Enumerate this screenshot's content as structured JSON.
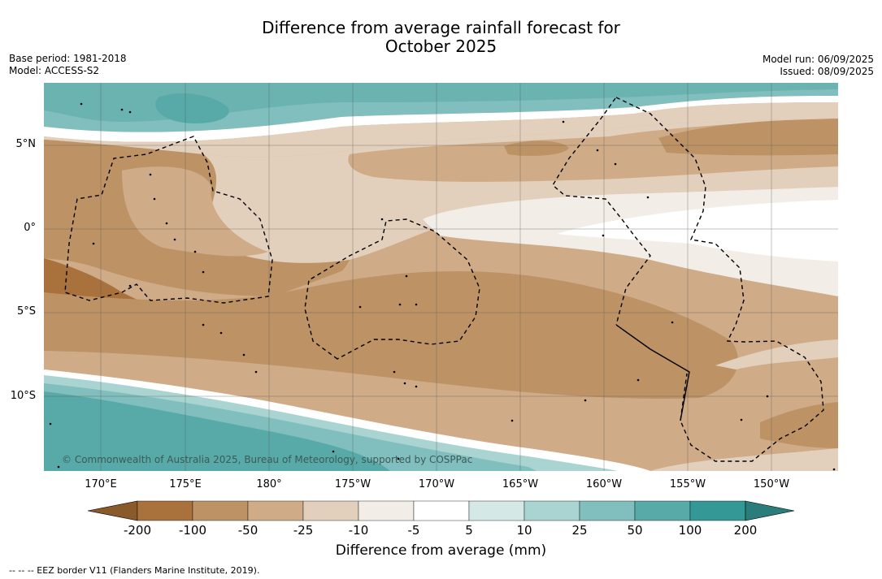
{
  "title_line1": "Difference from average rainfall forecast for",
  "title_line2": "October 2025",
  "base_period": "Base period: 1981-2018",
  "model": "Model: ACCESS-S2",
  "model_run": "Model run: 06/09/2025",
  "issued": "Issued: 08/09/2025",
  "lon_labels": [
    "170°E",
    "175°E",
    "180°",
    "175°W",
    "170°W",
    "165°W",
    "160°W",
    "155°W",
    "150°W"
  ],
  "lat_labels": [
    "5°N",
    "0°",
    "5°S",
    "10°S"
  ],
  "copyright": "© Commonwealth of Australia 2025, Bureau of Meteorology, supported by COSPPac",
  "colorbar": {
    "ticks": [
      "-200",
      "-100",
      "-50",
      "-25",
      "-10",
      "-5",
      "5",
      "10",
      "25",
      "50",
      "100",
      "200"
    ],
    "colors": [
      "#8b5a2b",
      "#a9713b",
      "#bd9366",
      "#cfab88",
      "#e2d0bd",
      "#f2ede6",
      "#ffffff",
      "#d4e8e5",
      "#a9d4d1",
      "#80bfbd",
      "#57aaa8",
      "#339896",
      "#2a7d7b"
    ],
    "title": "Difference from average (mm)"
  },
  "footnote": "--  --  -- EEZ border V11 (Flanders Marine Institute, 2019)."
}
